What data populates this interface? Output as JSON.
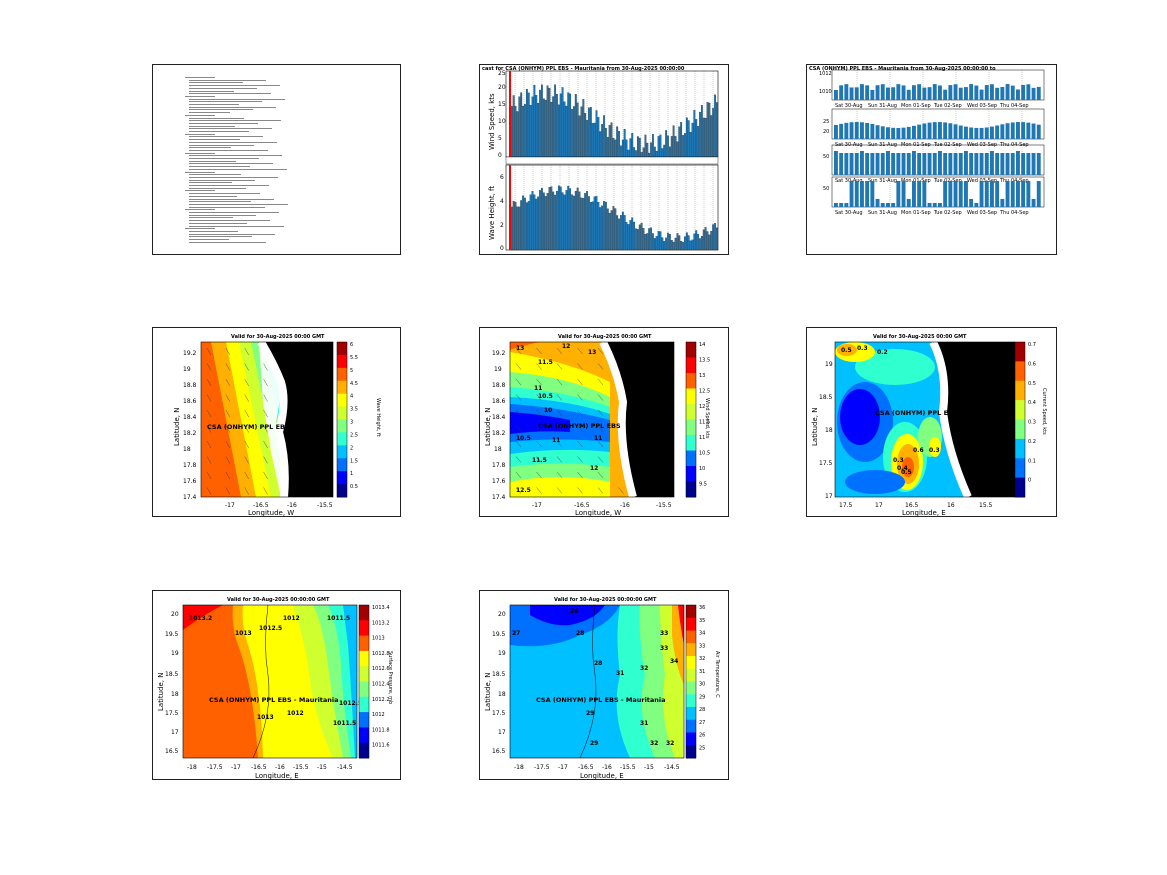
{
  "panels": {
    "text_report": {
      "lines": 62
    },
    "timeseries": {
      "title": "cast for CSA (ONHYM) PPL EBS - Mauritania from 30-Aug-2025 00:00:00",
      "wind_ylabel": "Wind Speed, kts",
      "wave_ylabel": "Wave Height, ft",
      "wind_yticks": [
        "0",
        "5",
        "10",
        "15",
        "20",
        "25"
      ],
      "wave_yticks": [
        "0",
        "2",
        "4",
        "6"
      ]
    },
    "multi": {
      "title": "CSA (ONHYM) PPL EBS - Mauritania from 30-Aug-2025 00:00:00 to",
      "xticks": [
        "Sat 30-Aug",
        "Sun 31-Aug",
        "Mon 01-Sep",
        "Tue 02-Sep",
        "Wed 03-Sep",
        "Thu 04-Sep"
      ],
      "row_yticks": [
        [
          "1012",
          "1010"
        ],
        [
          "25",
          "20"
        ],
        [
          "50",
          ""
        ],
        [
          "50",
          ""
        ]
      ]
    },
    "wave_map": {
      "title": "Valid for 30-Aug-2025 00:00 GMT",
      "ylabel": "Latitude, N",
      "xlabel": "Longitude, W",
      "yticks": [
        "19.2",
        "19",
        "18.8",
        "18.6",
        "18.4",
        "18.2",
        "18",
        "17.8",
        "17.6",
        "17.4"
      ],
      "xticks": [
        "-17",
        "-16.5",
        "-16",
        "-15.5"
      ],
      "colorbar_ticks": [
        "6",
        "5.5",
        "5",
        "4.5",
        "4",
        "3.5",
        "3",
        "2.5",
        "2",
        "1.5",
        "1",
        "0.5"
      ],
      "colorbar_label": "Wave Height, ft",
      "site_label": "CSA (ONHYM) PPL EBS"
    },
    "wind_map": {
      "title": "Valid for 30-Aug-2025 00:00 GMT",
      "ylabel": "Latitude, N",
      "xlabel": "Longitude, W",
      "yticks": [
        "19.2",
        "19",
        "18.8",
        "18.6",
        "18.4",
        "18.2",
        "18",
        "17.8",
        "17.6",
        "17.4"
      ],
      "xticks": [
        "-17",
        "-16.5",
        "-16",
        "-15.5"
      ],
      "colorbar_ticks": [
        "14",
        "13.5",
        "13",
        "12.5",
        "12",
        "11.5",
        "11",
        "10.5",
        "10",
        "9.5"
      ],
      "colorbar_label": "Wind Speed, kts",
      "site_label": "CSA (ONHYM) PPL EBS",
      "contour_labels": [
        "13",
        "12",
        "13",
        "11.5",
        "11",
        "10.5",
        "10",
        "10.5",
        "11",
        "11",
        "12",
        "11.5",
        "12.5"
      ]
    },
    "current_map": {
      "title": "Valid for 30-Aug-2025 00:00 GMT",
      "ylabel": "Latitude, N",
      "xlabel": "Longitude, E",
      "yticks": [
        "19",
        "18.5",
        "18",
        "17.5",
        "17"
      ],
      "xticks": [
        "17.5",
        "17",
        "16.5",
        "16",
        "15.5"
      ],
      "colorbar_ticks": [
        "0.7",
        "0.6",
        "0.5",
        "0.4",
        "0.3",
        "0.2",
        "0.1",
        "0"
      ],
      "colorbar_label": "Current Speed, kts",
      "site_label": "CSA (ONHYM) PPL EBS",
      "contour_labels": [
        "0.5",
        "0.3",
        "0.2",
        "0.3",
        "0.4",
        "0.5",
        "0.6",
        "0.3"
      ]
    },
    "pressure_map": {
      "title": "Valid for 30-Aug-2025 00:00:00 GMT",
      "ylabel": "Latitude, N",
      "xlabel": "Longitude, E",
      "yticks": [
        "20",
        "19.5",
        "19",
        "18.5",
        "18",
        "17.5",
        "17",
        "16.5"
      ],
      "xticks": [
        "-18",
        "-17.5",
        "-17",
        "-16.5",
        "-16",
        "-15.5",
        "-15",
        "-14.5"
      ],
      "colorbar_ticks": [
        "1013.4",
        "1013.2",
        "1013",
        "1012.8",
        "1012.6",
        "1012.4",
        "1012.2",
        "1012",
        "1011.8",
        "1011.6"
      ],
      "colorbar_label": "Surface Pressure, mb",
      "site_label": "CSA (ONHYM) PPL EBS  - Mauritania",
      "contour_labels": [
        "1013.2",
        "1013",
        "1012.5",
        "1012",
        "1011.5",
        "1012",
        "1013",
        "1012.5",
        "1011.5"
      ]
    },
    "temp_map": {
      "title": "Valid for 30-Aug-2025 00:00:00 GMT",
      "ylabel": "Latitude, N",
      "xlabel": "Longitude, E",
      "yticks": [
        "20",
        "19.5",
        "19",
        "18.5",
        "18",
        "17.5",
        "17",
        "16.5"
      ],
      "xticks": [
        "-18",
        "-17.5",
        "-17",
        "-16.5",
        "-16",
        "-15.5",
        "-15",
        "-14.5"
      ],
      "colorbar_ticks": [
        "36",
        "35",
        "34",
        "33",
        "32",
        "31",
        "30",
        "29",
        "28",
        "27",
        "26",
        "25"
      ],
      "colorbar_label": "Air Temperature, C",
      "site_label": "CSA (ONHYM) PPL EBS  - Mauritania",
      "contour_labels": [
        "27",
        "26",
        "28",
        "28",
        "31",
        "32",
        "33",
        "34",
        "32",
        "29",
        "29",
        "31",
        "32",
        "33"
      ]
    }
  },
  "colors": {
    "bar": "#1f77b4",
    "current_day_line": "#ff0000",
    "land": "#000000",
    "jet": [
      "#00008f",
      "#0000ff",
      "#0070ff",
      "#00c0ff",
      "#30ffd0",
      "#80ff80",
      "#d0ff30",
      "#ffff00",
      "#ffb000",
      "#ff6000",
      "#ff0000",
      "#a00000"
    ]
  }
}
